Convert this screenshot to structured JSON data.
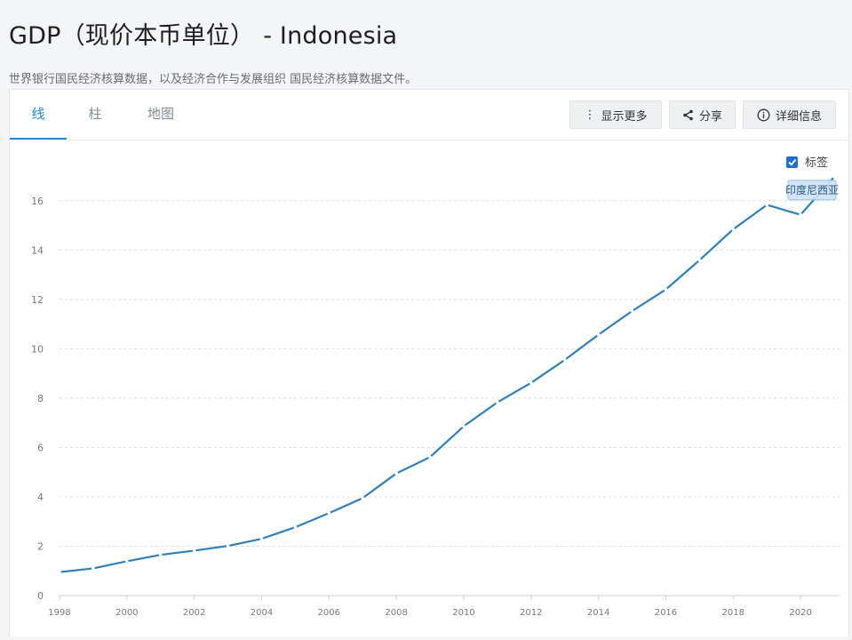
{
  "header": {
    "title": "GDP（现价本币单位）",
    "title_country": "- Indonesia",
    "subtitle": "世界银行国民经济核算数据，以及经济合作与发展组织 国民经济核算数据文件。"
  },
  "tabs": [
    {
      "label": "线",
      "active": true
    },
    {
      "label": "柱",
      "active": false
    },
    {
      "label": "地图",
      "active": false
    }
  ],
  "toolbar": {
    "more_label": "显示更多",
    "share_label": "分享",
    "details_label": "详细信息"
  },
  "label_toggle": {
    "label": "标签",
    "checked": true
  },
  "colors": {
    "line": "#2e7fba",
    "accent": "#1f89d1",
    "tooltip_bg": "#cfe3f5"
  },
  "chart_data": {
    "type": "line",
    "title": "",
    "xlabel": "",
    "ylabel": "",
    "xlim": [
      1998,
      2021
    ],
    "ylim": [
      0,
      17
    ],
    "x_ticks": [
      1998,
      2000,
      2002,
      2004,
      2006,
      2008,
      2010,
      2012,
      2014,
      2016,
      2018,
      2020
    ],
    "y_ticks": [
      0,
      2,
      4,
      6,
      8,
      10,
      12,
      14,
      16
    ],
    "grid": "horizontal-dashed",
    "series": [
      {
        "name": "印度尼西亚",
        "x": [
          1998,
          1999,
          2000,
          2001,
          2002,
          2003,
          2004,
          2005,
          2006,
          2007,
          2008,
          2009,
          2010,
          2011,
          2012,
          2013,
          2014,
          2015,
          2016,
          2017,
          2018,
          2019,
          2020,
          2021
        ],
        "y": [
          0.95,
          1.1,
          1.39,
          1.65,
          1.82,
          2.01,
          2.3,
          2.77,
          3.34,
          3.95,
          4.95,
          5.61,
          6.86,
          7.83,
          8.62,
          9.55,
          10.57,
          11.53,
          12.4,
          13.59,
          14.84,
          15.83,
          15.43,
          16.97
        ]
      }
    ],
    "annotation": {
      "text": "印度尼西亚",
      "series_index": 0
    }
  }
}
